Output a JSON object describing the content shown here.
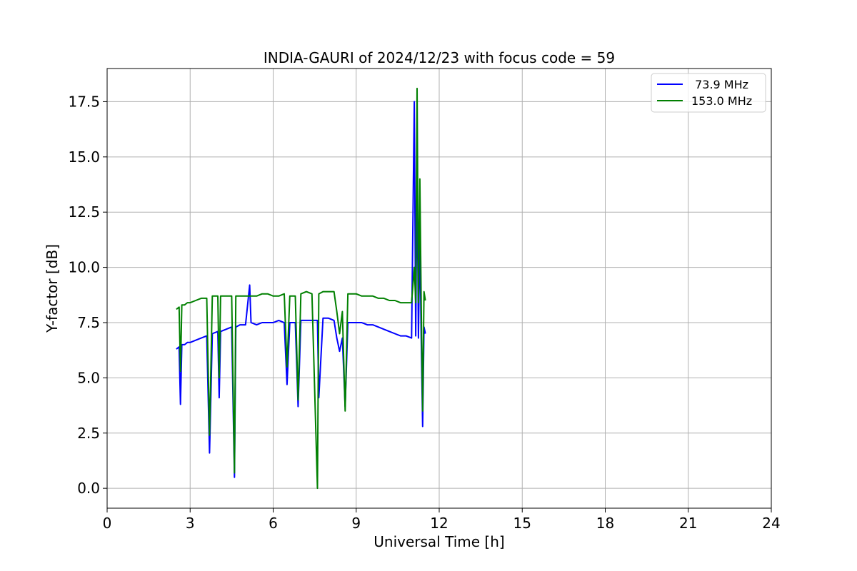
{
  "chart_data": {
    "type": "line",
    "title": "INDIA-GAURI of 2024/12/23 with focus code = 59",
    "xlabel": "Universal Time [h]",
    "ylabel": "Y-factor [dB]",
    "xlim": [
      0,
      24
    ],
    "ylim": [
      -0.9,
      19.0
    ],
    "xticks": [
      0,
      3,
      6,
      9,
      12,
      15,
      18,
      21,
      24
    ],
    "xtick_labels": [
      "0",
      "3",
      "6",
      "9",
      "12",
      "15",
      "18",
      "21",
      "24"
    ],
    "yticks": [
      0.0,
      2.5,
      5.0,
      7.5,
      10.0,
      12.5,
      15.0,
      17.5
    ],
    "ytick_labels": [
      "0.0",
      "2.5",
      "5.0",
      "7.5",
      "10.0",
      "12.5",
      "15.0",
      "17.5"
    ],
    "grid": true,
    "legend_position": "top-right",
    "series": [
      {
        "name": " 73.9 MHz",
        "color": "#0000ff",
        "x": [
          2.5,
          2.6,
          2.65,
          2.7,
          2.8,
          2.9,
          3.0,
          3.2,
          3.4,
          3.6,
          3.7,
          3.8,
          4.0,
          4.05,
          4.1,
          4.3,
          4.5,
          4.6,
          4.65,
          4.8,
          5.0,
          5.15,
          5.2,
          5.4,
          5.6,
          5.8,
          6.0,
          6.2,
          6.4,
          6.5,
          6.6,
          6.8,
          6.9,
          7.0,
          7.2,
          7.4,
          7.6,
          7.65,
          7.8,
          8.0,
          8.2,
          8.3,
          8.4,
          8.5,
          8.6,
          8.7,
          8.8,
          9.0,
          9.2,
          9.4,
          9.6,
          9.8,
          10.0,
          10.2,
          10.4,
          10.6,
          10.8,
          11.0,
          11.1,
          11.15,
          11.2,
          11.25,
          11.3,
          11.35,
          11.4,
          11.45,
          11.5
        ],
        "values": [
          6.3,
          6.4,
          3.8,
          6.5,
          6.5,
          6.6,
          6.6,
          6.7,
          6.8,
          6.9,
          1.6,
          7.0,
          7.1,
          4.1,
          7.1,
          7.2,
          7.3,
          0.5,
          7.3,
          7.4,
          7.4,
          9.2,
          7.5,
          7.4,
          7.5,
          7.5,
          7.5,
          7.6,
          7.5,
          4.7,
          7.5,
          7.5,
          3.7,
          7.6,
          7.6,
          7.6,
          7.6,
          4.1,
          7.7,
          7.7,
          7.6,
          6.8,
          6.2,
          6.8,
          3.7,
          7.5,
          7.5,
          7.5,
          7.5,
          7.4,
          7.4,
          7.3,
          7.2,
          7.1,
          7.0,
          6.9,
          6.9,
          6.8,
          17.5,
          6.9,
          14.5,
          6.8,
          11.5,
          6.8,
          2.8,
          7.3,
          7.0
        ]
      },
      {
        "name": "153.0 MHz",
        "color": "#008000",
        "x": [
          2.5,
          2.6,
          2.65,
          2.7,
          2.8,
          2.9,
          3.0,
          3.2,
          3.4,
          3.6,
          3.7,
          3.8,
          4.0,
          4.05,
          4.1,
          4.3,
          4.5,
          4.6,
          4.65,
          4.8,
          5.0,
          5.2,
          5.4,
          5.6,
          5.8,
          6.0,
          6.2,
          6.4,
          6.5,
          6.6,
          6.8,
          6.9,
          7.0,
          7.2,
          7.4,
          7.6,
          7.65,
          7.8,
          8.0,
          8.2,
          8.3,
          8.4,
          8.5,
          8.6,
          8.7,
          8.8,
          9.0,
          9.2,
          9.4,
          9.6,
          9.8,
          10.0,
          10.2,
          10.4,
          10.6,
          10.8,
          11.0,
          11.1,
          11.15,
          11.2,
          11.25,
          11.3,
          11.35,
          11.4,
          11.45,
          11.5
        ],
        "values": [
          8.1,
          8.2,
          5.3,
          8.3,
          8.3,
          8.4,
          8.4,
          8.5,
          8.6,
          8.6,
          2.4,
          8.7,
          8.7,
          5.0,
          8.7,
          8.7,
          8.7,
          0.7,
          8.7,
          8.7,
          8.7,
          8.7,
          8.7,
          8.8,
          8.8,
          8.7,
          8.7,
          8.8,
          5.5,
          8.7,
          8.7,
          4.0,
          8.8,
          8.9,
          8.8,
          0.0,
          8.8,
          8.9,
          8.9,
          8.9,
          8.0,
          7.0,
          8.0,
          3.5,
          8.8,
          8.8,
          8.8,
          8.7,
          8.7,
          8.7,
          8.6,
          8.6,
          8.5,
          8.5,
          8.4,
          8.4,
          8.4,
          10.0,
          8.4,
          18.1,
          8.4,
          14.0,
          8.3,
          3.5,
          8.9,
          8.5
        ]
      }
    ]
  }
}
